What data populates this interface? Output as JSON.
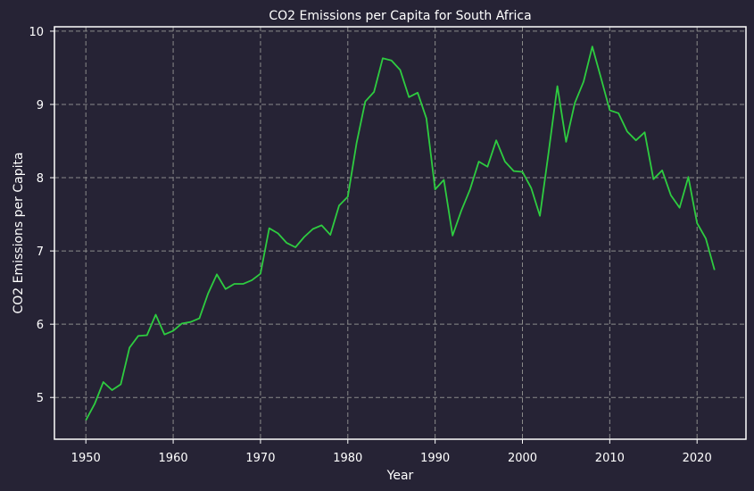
{
  "chart_data": {
    "type": "line",
    "title": "CO2 Emissions per Capita for South Africa",
    "xlabel": "Year",
    "ylabel": "CO2 Emissions per Capita",
    "xlim": [
      1946.4,
      2025.6
    ],
    "ylim": [
      4.43,
      10.06
    ],
    "xticks": [
      1950,
      1960,
      1970,
      1980,
      1990,
      2000,
      2010,
      2020
    ],
    "yticks": [
      5,
      6,
      7,
      8,
      9,
      10
    ],
    "grid": true,
    "colors": {
      "background": "#262335",
      "line": "#2ecc40",
      "grid": "#8a8a8a",
      "axes": "#ffffff",
      "text": "#ffffff"
    },
    "series": [
      {
        "x": [
          1950,
          1951,
          1952,
          1953,
          1954,
          1955,
          1956,
          1957,
          1958,
          1959,
          1960,
          1961,
          1962,
          1963,
          1964,
          1965,
          1966,
          1967,
          1968,
          1969,
          1970,
          1971,
          1972,
          1973,
          1974,
          1975,
          1976,
          1977,
          1978,
          1979,
          1980,
          1981,
          1982,
          1983,
          1984,
          1985,
          1986,
          1987,
          1988,
          1989,
          1990,
          1991,
          1992,
          1993,
          1994,
          1995,
          1996,
          1997,
          1998,
          1999,
          2000,
          2001,
          2002,
          2003,
          2004,
          2005,
          2006,
          2007,
          2008,
          2009,
          2010,
          2011,
          2012,
          2013,
          2014,
          2015,
          2016,
          2017,
          2018,
          2019,
          2020,
          2021,
          2022
        ],
        "values": [
          4.69,
          4.91,
          5.21,
          5.1,
          5.18,
          5.68,
          5.84,
          5.85,
          6.13,
          5.86,
          5.91,
          6.01,
          6.03,
          6.08,
          6.42,
          6.68,
          6.48,
          6.55,
          6.55,
          6.6,
          6.69,
          7.31,
          7.24,
          7.11,
          7.05,
          7.19,
          7.3,
          7.35,
          7.22,
          7.62,
          7.74,
          8.47,
          9.04,
          9.17,
          9.63,
          9.6,
          9.47,
          9.1,
          9.16,
          8.81,
          7.84,
          7.97,
          7.21,
          7.55,
          7.84,
          8.22,
          8.15,
          8.51,
          8.22,
          8.09,
          8.08,
          7.86,
          7.48,
          8.35,
          9.25,
          8.49,
          9.02,
          9.31,
          9.79,
          9.36,
          8.92,
          8.88,
          8.63,
          8.51,
          8.62,
          7.98,
          8.1,
          7.76,
          7.59,
          8.01,
          7.38,
          7.17,
          6.74
        ]
      }
    ]
  }
}
